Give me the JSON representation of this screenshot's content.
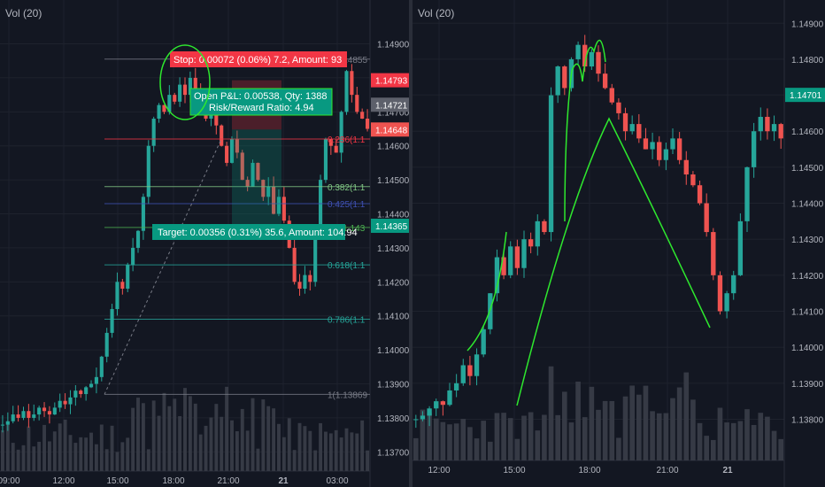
{
  "left": {
    "vol_label": "Vol (20)",
    "price_ticks": [
      "1.14900",
      "1.14800",
      "1.14700",
      "1.14600",
      "1.14500",
      "1.14400",
      "1.14300",
      "1.14200",
      "1.14100",
      "1.14000",
      "1.13900",
      "1.13800",
      "1.13700"
    ],
    "time_ticks": [
      "09:00",
      "12:00",
      "15:00",
      "18:00",
      "21:00",
      "21",
      "03:00"
    ],
    "badges": {
      "stop_price": "1.14793",
      "current_price": "1.14721",
      "entry_price": "1.14648",
      "target_price": "1.14365"
    },
    "fib_labels": [
      "0(1.14855",
      "0.236(1.1",
      "0.382(1.1",
      "0.425(1.1",
      "0.5(1.143",
      "0.618(1.1",
      "0.786(1.1",
      "1(1.13869"
    ],
    "position_tool": {
      "stop_text": "Stop: 0.00072 (0.06%) 7.2, Amount: 93",
      "pnl_text": "Open P&L: 0.00538, Qty: 1388",
      "rr_text": "Risk/Reward Ratio: 4.94",
      "target_text": "Target: 0.00356 (0.31%) 35.6, Amount: 104.94"
    },
    "colors": {
      "up": "#26a69a",
      "down": "#ef5350",
      "stop": "#f23645",
      "target": "#089981",
      "annotation": "#2ee82e"
    }
  },
  "right": {
    "vol_label": "Vol (20)",
    "price_ticks": [
      "1.14900",
      "1.14800",
      "1.14701",
      "1.14600",
      "1.14500",
      "1.14400",
      "1.14300",
      "1.14200",
      "1.14100",
      "1.14000",
      "1.13900",
      "1.13800"
    ],
    "time_ticks": [
      "12:00",
      "15:00",
      "18:00",
      "21:00",
      "21"
    ],
    "badges": {
      "current_price": "1.14701"
    }
  },
  "chart_data": [
    {
      "type": "candlestick",
      "title": "",
      "ylim": [
        1.1368,
        1.1493
      ],
      "close_series": [
        1.1378,
        1.1379,
        1.1381,
        1.138,
        1.1382,
        1.138,
        1.1381,
        1.1383,
        1.1382,
        1.1381,
        1.1383,
        1.1385,
        1.1384,
        1.1386,
        1.1388,
        1.1387,
        1.1389,
        1.139,
        1.1392,
        1.1398,
        1.1405,
        1.1412,
        1.142,
        1.1418,
        1.1425,
        1.143,
        1.1435,
        1.1445,
        1.146,
        1.1468,
        1.1472,
        1.147,
        1.1475,
        1.1473,
        1.1478,
        1.1475,
        1.148,
        1.1476,
        1.1472,
        1.1468,
        1.147,
        1.1466,
        1.146,
        1.1455,
        1.1462,
        1.1458,
        1.145,
        1.1448,
        1.1455,
        1.145,
        1.1445,
        1.1448,
        1.144,
        1.1445,
        1.1438,
        1.143,
        1.142,
        1.1418,
        1.1422,
        1.142,
        1.1435,
        1.145,
        1.1462,
        1.146,
        1.1458,
        1.147,
        1.1482,
        1.1475,
        1.147,
        1.1468,
        1.1465
      ],
      "fib_levels": [
        1.14855,
        1.1462,
        1.1448,
        1.1443,
        1.1436,
        1.1425,
        1.1409,
        1.13869
      ]
    },
    {
      "type": "candlestick",
      "title": "",
      "ylim": [
        1.1372,
        1.1494
      ],
      "close_series": [
        1.138,
        1.1381,
        1.1383,
        1.1385,
        1.1384,
        1.1388,
        1.139,
        1.1395,
        1.1392,
        1.1398,
        1.1405,
        1.1415,
        1.1425,
        1.142,
        1.1428,
        1.1422,
        1.143,
        1.1428,
        1.1435,
        1.1432,
        1.147,
        1.1478,
        1.1472,
        1.148,
        1.1484,
        1.1478,
        1.1482,
        1.1476,
        1.1472,
        1.1468,
        1.1465,
        1.146,
        1.1462,
        1.1458,
        1.1455,
        1.1457,
        1.1452,
        1.1455,
        1.1458,
        1.1452,
        1.1448,
        1.1445,
        1.144,
        1.1432,
        1.142,
        1.141,
        1.1415,
        1.142,
        1.1435,
        1.145,
        1.146,
        1.1464,
        1.146,
        1.1462,
        1.1458
      ]
    }
  ]
}
